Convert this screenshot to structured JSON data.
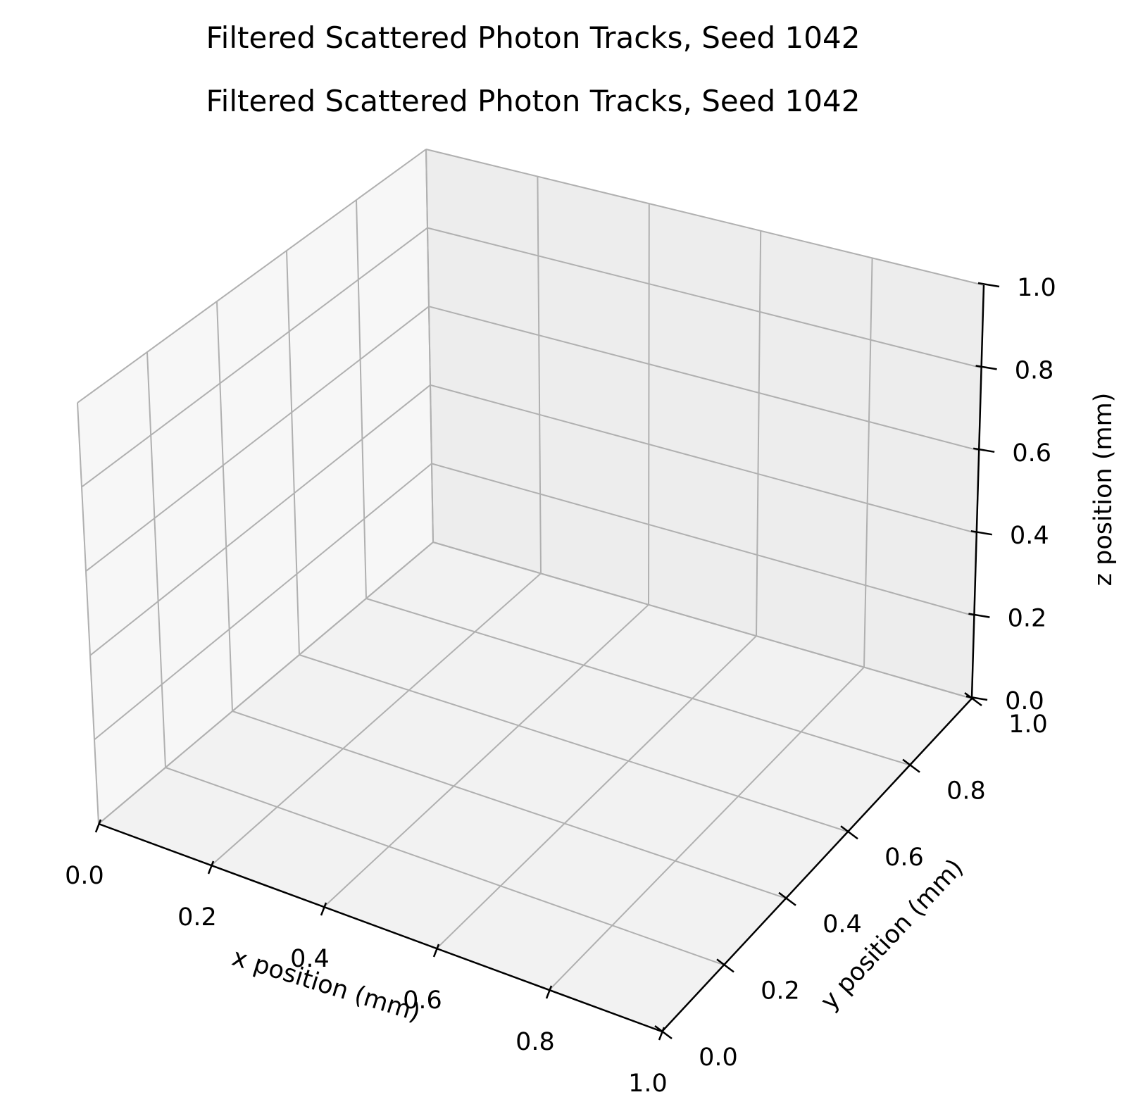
{
  "chart_data": {
    "type": "scatter",
    "title": "Filtered Scattered Photon Tracks, Seed 1042",
    "subtitle": "Filtered Scattered Photon Tracks, Seed 1042",
    "xlabel": "x position (mm)",
    "ylabel": "y position (mm)",
    "zlabel": "z position (mm)",
    "xlim": [
      0.0,
      1.0
    ],
    "ylim": [
      0.0,
      1.0
    ],
    "zlim": [
      0.0,
      1.0
    ],
    "xticks": [
      "0.0",
      "0.2",
      "0.4",
      "0.6",
      "0.8",
      "1.0"
    ],
    "yticks": [
      "0.0",
      "0.2",
      "0.4",
      "0.6",
      "0.8",
      "1.0"
    ],
    "zticks": [
      "0.0",
      "0.2",
      "0.4",
      "0.6",
      "0.8",
      "1.0"
    ],
    "grid": true,
    "series": []
  },
  "colors": {
    "grid": "#b0b0b0",
    "pane_floor": "#f2f2f2",
    "pane_left": "#f7f7f7",
    "pane_back": "#ededed"
  }
}
